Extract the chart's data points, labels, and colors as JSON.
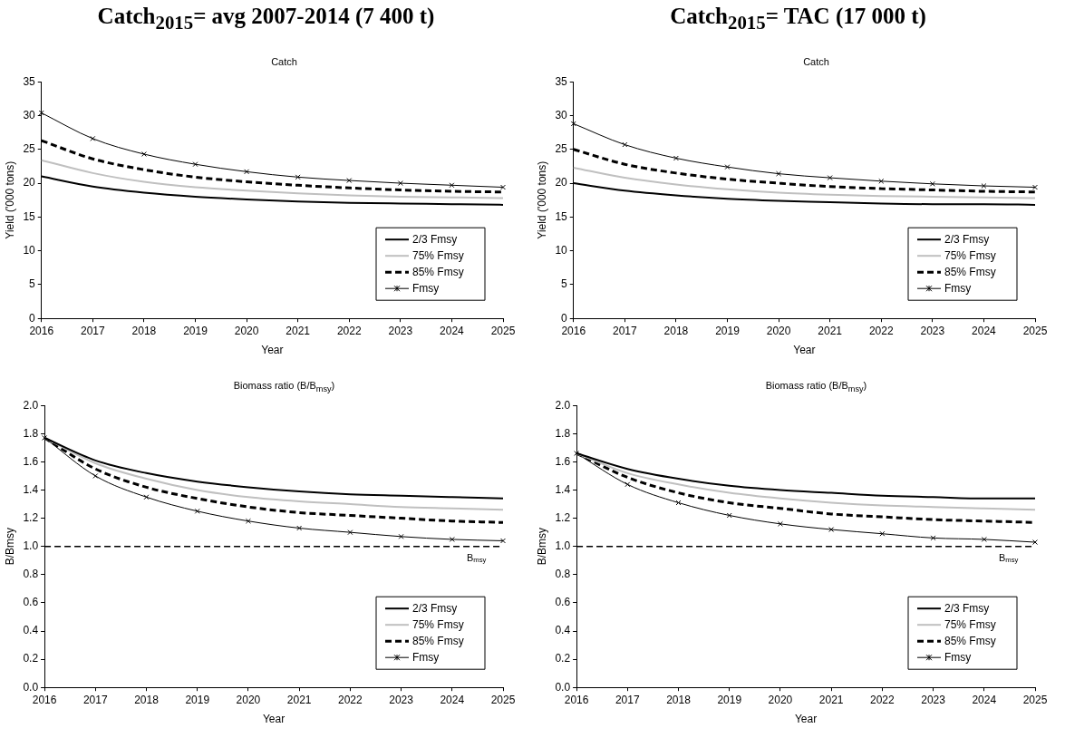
{
  "chart_data": [
    {
      "type": "line",
      "title": "Catch$_{2015}$= avg 2007-2014 (7 400 t)",
      "subtitle": "Catch",
      "xlabel": "Year",
      "ylabel": "Yield ('000 tons)",
      "categories": [
        "2016",
        "2017",
        "2018",
        "2019",
        "2020",
        "2021",
        "2022",
        "2023",
        "2024",
        "2025"
      ],
      "series": [
        {
          "name": "2/3 Fmsy",
          "color": "#000000",
          "line_style": "solid",
          "marker": "none",
          "values": [
            21,
            19.5,
            18.6,
            18,
            17.6,
            17.3,
            17.1,
            17,
            16.9,
            16.8
          ]
        },
        {
          "name": "75% Fmsy",
          "color": "#c0c0c0",
          "line_style": "solid",
          "marker": "none",
          "values": [
            23.4,
            21.5,
            20.2,
            19.4,
            18.9,
            18.5,
            18.2,
            18,
            17.9,
            17.8
          ]
        },
        {
          "name": "85% Fmsy",
          "color": "#000000",
          "line_style": "dashed",
          "marker": "none",
          "values": [
            26.3,
            23.6,
            22,
            20.9,
            20.2,
            19.7,
            19.3,
            19,
            18.8,
            18.7
          ]
        },
        {
          "name": "Fmsy",
          "color": "#000000",
          "line_style": "solid",
          "marker": "cross",
          "values": [
            30.4,
            26.6,
            24.3,
            22.8,
            21.7,
            20.9,
            20.4,
            20,
            19.7,
            19.4
          ]
        }
      ],
      "ylim": [
        0,
        35
      ],
      "yticks": [
        0,
        5,
        10,
        15,
        20,
        25,
        30,
        35
      ],
      "legend": "bottom right"
    },
    {
      "type": "line",
      "title": "Catch$_{2015}$= TAC (17 000 t)",
      "subtitle": "Catch",
      "xlabel": "Year",
      "ylabel": "Yield ('000 tons)",
      "categories": [
        "2016",
        "2017",
        "2018",
        "2019",
        "2020",
        "2021",
        "2022",
        "2023",
        "2024",
        "2025"
      ],
      "series": [
        {
          "name": "2/3 Fmsy",
          "color": "#000000",
          "line_style": "solid",
          "marker": "none",
          "values": [
            20,
            18.9,
            18.2,
            17.7,
            17.4,
            17.2,
            17,
            16.9,
            16.9,
            16.8
          ]
        },
        {
          "name": "75% Fmsy",
          "color": "#c0c0c0",
          "line_style": "solid",
          "marker": "none",
          "values": [
            22.3,
            20.8,
            19.8,
            19.1,
            18.6,
            18.3,
            18.1,
            18,
            17.9,
            17.8
          ]
        },
        {
          "name": "85% Fmsy",
          "color": "#000000",
          "line_style": "dashed",
          "marker": "none",
          "values": [
            25,
            22.8,
            21.5,
            20.6,
            20,
            19.5,
            19.2,
            19,
            18.8,
            18.7
          ]
        },
        {
          "name": "Fmsy",
          "color": "#000000",
          "line_style": "solid",
          "marker": "cross",
          "values": [
            28.8,
            25.7,
            23.7,
            22.4,
            21.4,
            20.8,
            20.3,
            19.9,
            19.6,
            19.4
          ]
        }
      ],
      "ylim": [
        0,
        35
      ],
      "yticks": [
        0,
        5,
        10,
        15,
        20,
        25,
        30,
        35
      ],
      "legend": "bottom right"
    },
    {
      "type": "line",
      "title": "Biomass ratio (B/B$_{msy}$)",
      "xlabel": "Year",
      "ylabel": "B/Bmsy",
      "categories": [
        "2016",
        "2017",
        "2018",
        "2019",
        "2020",
        "2021",
        "2022",
        "2023",
        "2024",
        "2025"
      ],
      "series": [
        {
          "name": "2/3 Fmsy",
          "color": "#000000",
          "line_style": "solid",
          "marker": "none",
          "values": [
            1.77,
            1.61,
            1.52,
            1.46,
            1.42,
            1.39,
            1.37,
            1.36,
            1.35,
            1.34
          ]
        },
        {
          "name": "75% Fmsy",
          "color": "#c0c0c0",
          "line_style": "solid",
          "marker": "none",
          "values": [
            1.77,
            1.59,
            1.48,
            1.4,
            1.35,
            1.32,
            1.3,
            1.28,
            1.27,
            1.26
          ]
        },
        {
          "name": "85% Fmsy",
          "color": "#000000",
          "line_style": "dashed",
          "marker": "none",
          "values": [
            1.77,
            1.55,
            1.42,
            1.34,
            1.28,
            1.24,
            1.22,
            1.2,
            1.18,
            1.17
          ]
        },
        {
          "name": "Fmsy",
          "color": "#000000",
          "line_style": "solid",
          "marker": "cross",
          "values": [
            1.77,
            1.5,
            1.35,
            1.25,
            1.18,
            1.13,
            1.1,
            1.07,
            1.05,
            1.04
          ]
        }
      ],
      "ylim": [
        0,
        2
      ],
      "yticks": [
        {
          "value": 0,
          "label": "0.0"
        },
        {
          "value": 0.2,
          "label": "0.2"
        },
        {
          "value": 0.4,
          "label": "0.4"
        },
        {
          "value": 0.6,
          "label": "0.6"
        },
        {
          "value": 0.8,
          "label": "0.8"
        },
        {
          "value": 1,
          "label": "1.0"
        },
        {
          "value": 1.2,
          "label": "1.2"
        },
        {
          "value": 1.4,
          "label": "1.4"
        },
        {
          "value": 1.6,
          "label": "1.6"
        },
        {
          "value": 1.8,
          "label": "1.8"
        },
        {
          "value": 2,
          "label": "2.0"
        }
      ],
      "ref_lines": [
        {
          "axis": "y",
          "value": 1,
          "label": "B$_{msy}$",
          "color": "#000000",
          "line_style": "dashed"
        }
      ],
      "legend": "bottom right"
    },
    {
      "type": "line",
      "title": "Biomass ratio (B/B$_{msy}$)",
      "xlabel": "Year",
      "ylabel": "B/Bmsy",
      "categories": [
        "2016",
        "2017",
        "2018",
        "2019",
        "2020",
        "2021",
        "2022",
        "2023",
        "2024",
        "2025"
      ],
      "series": [
        {
          "name": "2/3 Fmsy",
          "color": "#000000",
          "line_style": "solid",
          "marker": "none",
          "values": [
            1.66,
            1.55,
            1.48,
            1.43,
            1.4,
            1.38,
            1.36,
            1.35,
            1.34,
            1.34
          ]
        },
        {
          "name": "75% Fmsy",
          "color": "#c0c0c0",
          "line_style": "solid",
          "marker": "none",
          "values": [
            1.66,
            1.52,
            1.44,
            1.38,
            1.34,
            1.31,
            1.29,
            1.28,
            1.27,
            1.26
          ]
        },
        {
          "name": "85% Fmsy",
          "color": "#000000",
          "line_style": "dashed",
          "marker": "none",
          "values": [
            1.66,
            1.49,
            1.38,
            1.31,
            1.27,
            1.23,
            1.21,
            1.19,
            1.18,
            1.17
          ]
        },
        {
          "name": "Fmsy",
          "color": "#000000",
          "line_style": "solid",
          "marker": "cross",
          "values": [
            1.66,
            1.44,
            1.31,
            1.22,
            1.16,
            1.12,
            1.09,
            1.06,
            1.05,
            1.03
          ]
        }
      ],
      "ylim": [
        0,
        2
      ],
      "yticks": [
        {
          "value": 0,
          "label": "0.0"
        },
        {
          "value": 0.2,
          "label": "0.2"
        },
        {
          "value": 0.4,
          "label": "0.4"
        },
        {
          "value": 0.6,
          "label": "0.6"
        },
        {
          "value": 0.8,
          "label": "0.8"
        },
        {
          "value": 1,
          "label": "1.0"
        },
        {
          "value": 1.2,
          "label": "1.2"
        },
        {
          "value": 1.4,
          "label": "1.4"
        },
        {
          "value": 1.6,
          "label": "1.6"
        },
        {
          "value": 1.8,
          "label": "1.8"
        },
        {
          "value": 2,
          "label": "2.0"
        }
      ],
      "ref_lines": [
        {
          "axis": "y",
          "value": 1,
          "label": "B$_{msy}$",
          "color": "#000000",
          "line_style": "dashed"
        }
      ],
      "legend": "bottom right"
    }
  ]
}
